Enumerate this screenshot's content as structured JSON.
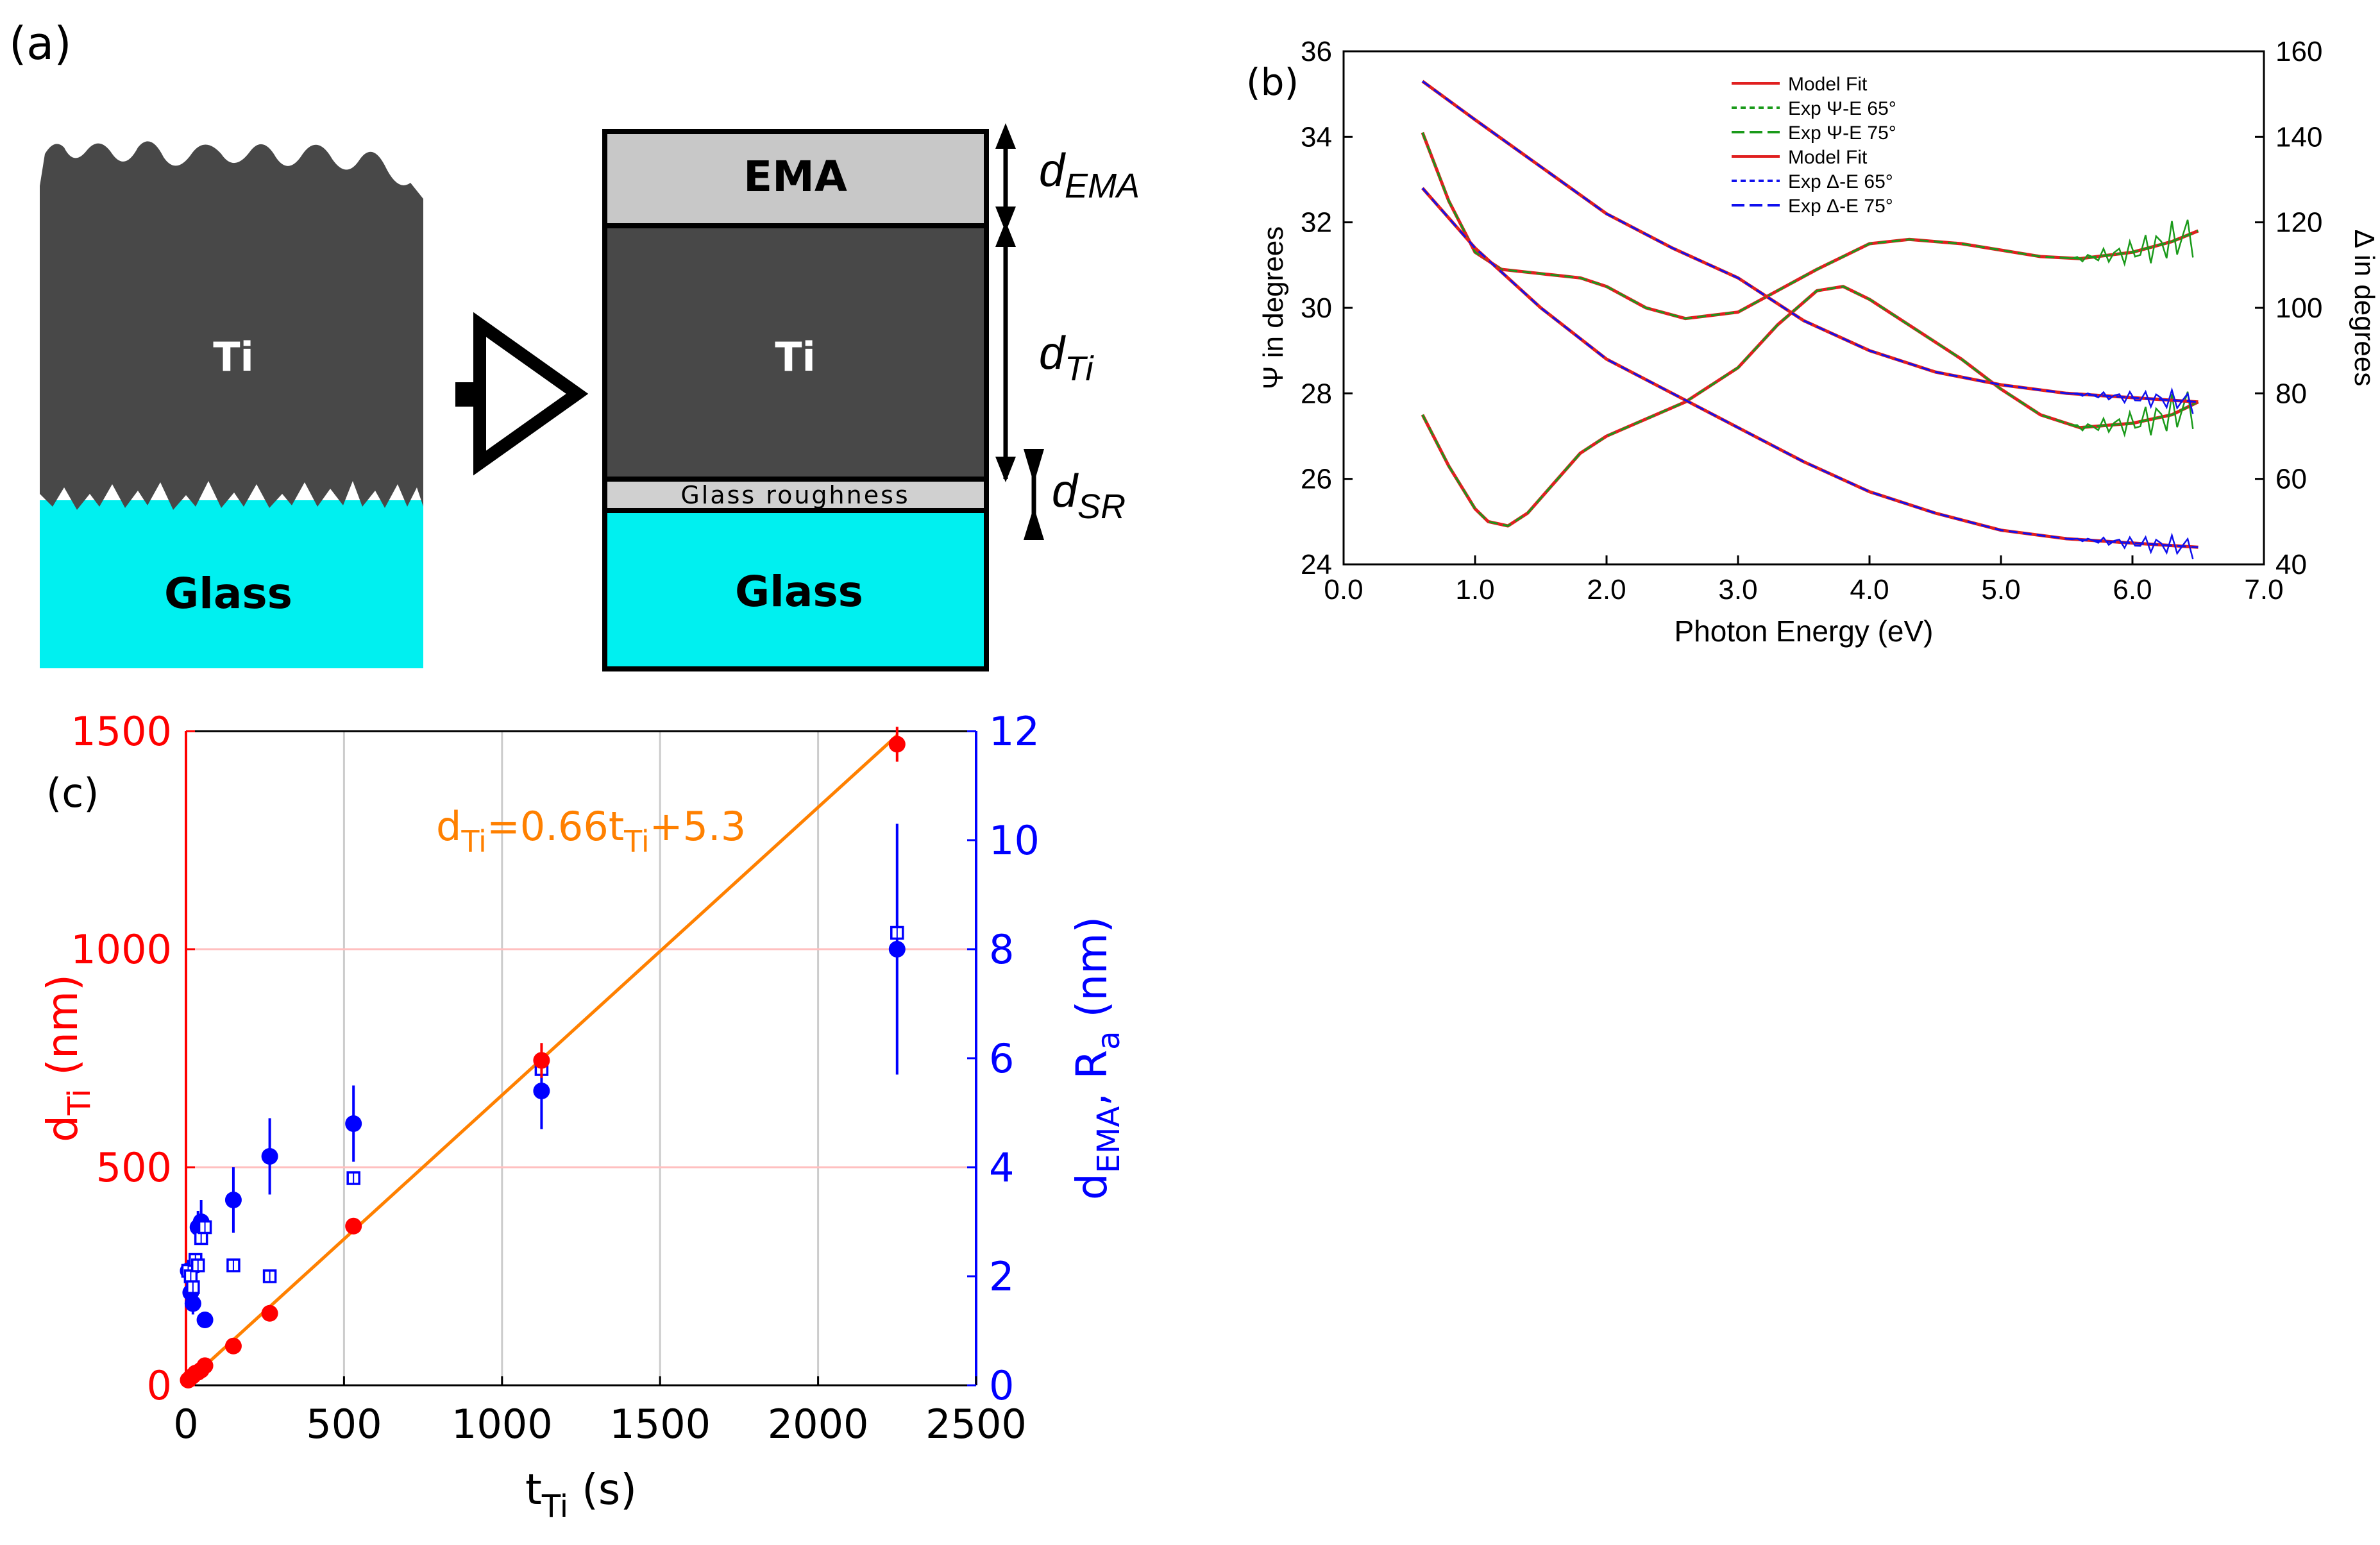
{
  "figure": {
    "panel_a": {
      "label": "(a)",
      "left_ti": "Ti",
      "left_glass": "Glass",
      "ema": "EMA",
      "ti": "Ti",
      "roughness": "Glass roughness",
      "glass": "Glass",
      "d_ema_main": "d",
      "d_ema_sub": "EMA",
      "d_ti_main": "d",
      "d_ti_sub": "Ti",
      "d_sr_main": "d",
      "d_sr_sub": "SR",
      "colors": {
        "ti": "#484848",
        "glass": "#00f0f0",
        "ema": "#c8c8c8",
        "rough": "#d0d0d0"
      }
    },
    "panel_b_label": "(b)",
    "panel_c_label": "(c)"
  },
  "chart_data": [
    {
      "id": "b",
      "type": "line",
      "xlabel": "Photon Energy (eV)",
      "ylabel_left": "Ψ in degrees",
      "ylabel_right": "Δ in degrees",
      "xlim": [
        0,
        7
      ],
      "ylim_left": [
        24,
        36
      ],
      "ylim_right": [
        40,
        160
      ],
      "xticks": [
        "0.0",
        "1.0",
        "2.0",
        "3.0",
        "4.0",
        "5.0",
        "6.0",
        "7.0"
      ],
      "yticks_left": [
        "24",
        "26",
        "28",
        "30",
        "32",
        "34",
        "36"
      ],
      "yticks_right": [
        "40",
        "60",
        "80",
        "100",
        "120",
        "140",
        "160"
      ],
      "legend": [
        {
          "label": "Model Fit",
          "color": "#e02020",
          "dash": "solid"
        },
        {
          "label": "Exp Ψ-E 65°",
          "color": "#1a9a1a",
          "dash": "short"
        },
        {
          "label": "Exp Ψ-E 75°",
          "color": "#1a9a1a",
          "dash": "long"
        },
        {
          "label": "Model Fit",
          "color": "#e02020",
          "dash": "solid"
        },
        {
          "label": "Exp Δ-E 65°",
          "color": "#1010ee",
          "dash": "short"
        },
        {
          "label": "Exp Δ-E 75°",
          "color": "#1010ee",
          "dash": "long"
        }
      ],
      "series": [
        {
          "name": "Ψ 65°",
          "axis": "left",
          "color": "#1a9a1a",
          "x": [
            0.6,
            0.8,
            1.0,
            1.2,
            1.5,
            1.8,
            2.0,
            2.3,
            2.6,
            3.0,
            3.3,
            3.6,
            4.0,
            4.3,
            4.7,
            5.0,
            5.3,
            5.6,
            6.0,
            6.3,
            6.5
          ],
          "y": [
            34.1,
            32.5,
            31.3,
            30.9,
            30.8,
            30.7,
            30.5,
            30.0,
            29.75,
            29.9,
            30.4,
            30.9,
            31.5,
            31.6,
            31.5,
            31.35,
            31.2,
            31.15,
            31.3,
            31.55,
            31.8
          ]
        },
        {
          "name": "Ψ 75°",
          "axis": "left",
          "color": "#1a9a1a",
          "x": [
            0.6,
            0.8,
            1.0,
            1.1,
            1.25,
            1.4,
            1.6,
            1.8,
            2.0,
            2.3,
            2.6,
            3.0,
            3.3,
            3.6,
            3.8,
            4.0,
            4.3,
            4.7,
            5.0,
            5.3,
            5.6,
            6.0,
            6.3,
            6.5
          ],
          "y": [
            27.5,
            26.3,
            25.3,
            25.0,
            24.9,
            25.2,
            25.9,
            26.6,
            27.0,
            27.4,
            27.8,
            28.6,
            29.6,
            30.4,
            30.5,
            30.2,
            29.6,
            28.8,
            28.1,
            27.5,
            27.2,
            27.3,
            27.5,
            27.8
          ]
        },
        {
          "name": "Δ 65°",
          "axis": "right",
          "color": "#1010ee",
          "x": [
            0.6,
            1.0,
            1.5,
            2.0,
            2.5,
            3.0,
            3.5,
            4.0,
            4.5,
            5.0,
            5.5,
            6.0,
            6.5
          ],
          "y": [
            153,
            144,
            133,
            122,
            114,
            107,
            97,
            90,
            85,
            82,
            80,
            79,
            78
          ]
        },
        {
          "name": "Δ 75°",
          "axis": "right",
          "color": "#1010ee",
          "x": [
            0.6,
            1.0,
            1.5,
            2.0,
            2.5,
            3.0,
            3.5,
            4.0,
            4.5,
            5.0,
            5.5,
            6.0,
            6.5
          ],
          "y": [
            128,
            114,
            100,
            88,
            80,
            72,
            64,
            57,
            52,
            48,
            46,
            45,
            44
          ]
        }
      ]
    },
    {
      "id": "c",
      "type": "scatter",
      "xlabel_main": "t",
      "xlabel_sub": "Ti",
      "xlabel_unit": " (s)",
      "ylabel_left_main": "d",
      "ylabel_left_sub": "Ti",
      "ylabel_left_unit": " (nm)",
      "ylabel_right_main": "d",
      "ylabel_right_sub1": "EMA",
      "ylabel_right_mid": ", R",
      "ylabel_right_sub2": "a",
      "ylabel_right_unit": " (nm)",
      "xlim": [
        0,
        2500
      ],
      "ylim_left": [
        0,
        1500
      ],
      "ylim_right": [
        0,
        12
      ],
      "xticks": [
        "0",
        "500",
        "1000",
        "1500",
        "2000",
        "2500"
      ],
      "yticks_left": [
        "0",
        "500",
        "1000",
        "1500"
      ],
      "yticks_right": [
        "0",
        "2",
        "4",
        "6",
        "8",
        "10",
        "12"
      ],
      "fit": {
        "label_main": "d",
        "label_sub1": "Ti",
        "label_mid": "=0.66t",
        "label_sub2": "Ti",
        "label_end": "+5.3",
        "slope": 0.66,
        "intercept": 5.3,
        "x_range": [
          0,
          2250
        ],
        "color": "#ff8000"
      },
      "colors": {
        "left": "#ff0000",
        "right": "#0000ff",
        "grid": "#cccccc",
        "grid_red": "#ffc0c0"
      },
      "d_ti": {
        "x": [
          7,
          15,
          22,
          30,
          38,
          48,
          60,
          150,
          265,
          530,
          1125,
          2250
        ],
        "y": [
          12,
          18,
          22,
          28,
          30,
          35,
          45,
          90,
          165,
          365,
          745,
          1470
        ],
        "err": [
          3,
          3,
          3,
          3,
          3,
          3,
          4,
          6,
          8,
          10,
          40,
          40
        ]
      },
      "d_ema": {
        "x": [
          7,
          15,
          22,
          30,
          38,
          48,
          60,
          150,
          265,
          530,
          1125,
          2250
        ],
        "y": [
          2.1,
          1.7,
          1.5,
          2.2,
          2.9,
          3.0,
          1.2,
          3.4,
          4.2,
          4.8,
          5.4,
          8.0
        ],
        "err": [
          0.2,
          0.2,
          0.2,
          0.2,
          0.3,
          0.4,
          0.1,
          0.6,
          0.7,
          0.7,
          0.7,
          2.3
        ]
      },
      "r_a": {
        "x": [
          7,
          15,
          22,
          30,
          38,
          48,
          60,
          150,
          265,
          530,
          1125,
          2250
        ],
        "y": [
          2.1,
          2.0,
          1.8,
          2.3,
          2.2,
          2.7,
          2.9,
          2.2,
          2.0,
          3.8,
          5.8,
          8.3
        ]
      }
    }
  ]
}
